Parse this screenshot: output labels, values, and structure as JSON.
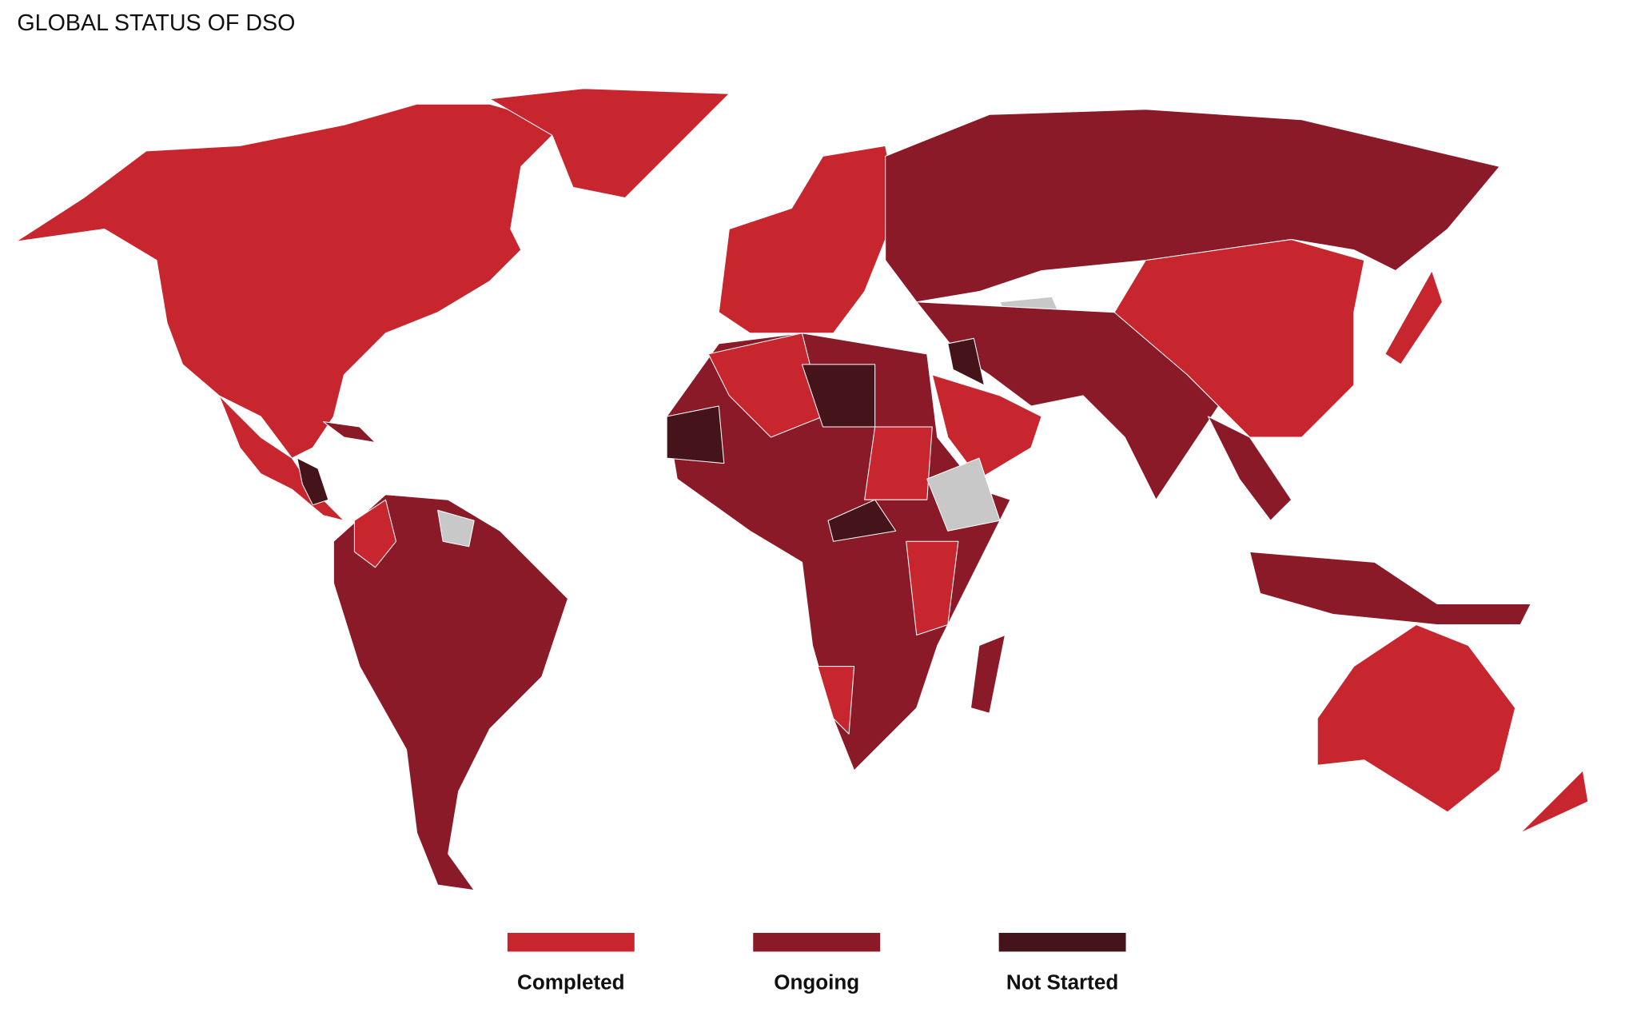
{
  "title": "GLOBAL STATUS OF DSO",
  "legend": [
    {
      "name": "Completed",
      "color": "#c8262f"
    },
    {
      "name": "Ongoing",
      "color": "#8b1a28"
    },
    {
      "name": "Not Started",
      "color": "#45141b"
    }
  ]
}
